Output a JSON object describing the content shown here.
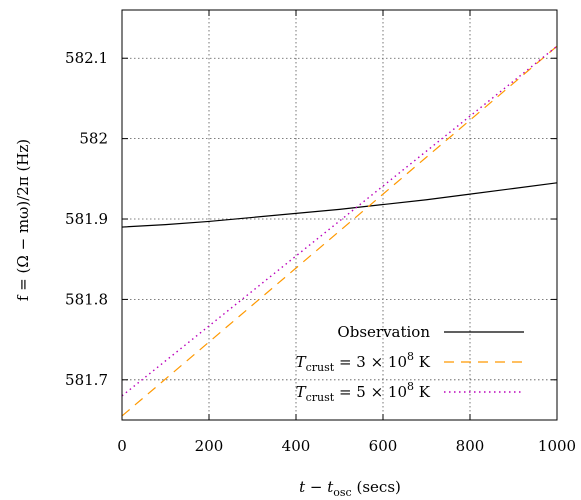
{
  "chart_data": {
    "type": "line",
    "xlabel": "t − t",
    "xlabel_sub": "osc",
    "xlabel_unit": " (secs)",
    "ylabel": "f = (Ω − mω)/2π (Hz)",
    "xlim": [
      0,
      1000
    ],
    "ylim": [
      581.65,
      582.16
    ],
    "x_ticks": [
      0,
      200,
      400,
      600,
      800,
      1000
    ],
    "y_ticks": [
      581.7,
      581.8,
      581.9,
      582.0,
      582.1
    ],
    "x_tick_labels": [
      "0",
      "200",
      "400",
      "600",
      "800",
      "1000"
    ],
    "y_tick_labels": [
      "581.7",
      "581.8",
      "581.9",
      "582",
      "582.1"
    ],
    "grid": true,
    "legend_position": "bottom-right",
    "series": [
      {
        "name": "Observation",
        "color": "#000000",
        "style": "solid",
        "x": [
          0,
          100,
          200,
          300,
          400,
          500,
          600,
          700,
          800,
          900,
          1000
        ],
        "y": [
          581.89,
          581.893,
          581.897,
          581.902,
          581.907,
          581.912,
          581.918,
          581.924,
          581.931,
          581.938,
          581.945
        ]
      },
      {
        "name": "T",
        "name_sub": "crust",
        "name_rest": " = 3 × 10",
        "name_sup": "8",
        "name_unit": " K",
        "color": "#ff9900",
        "style": "dashed",
        "x": [
          0,
          1000
        ],
        "y": [
          581.655,
          582.115
        ]
      },
      {
        "name": "T",
        "name_sub": "crust",
        "name_rest": " = 5 × 10",
        "name_sup": "8",
        "name_unit": " K",
        "color": "#bb00bb",
        "style": "dotted",
        "x": [
          0,
          1000
        ],
        "y": [
          581.68,
          582.115
        ]
      }
    ]
  }
}
